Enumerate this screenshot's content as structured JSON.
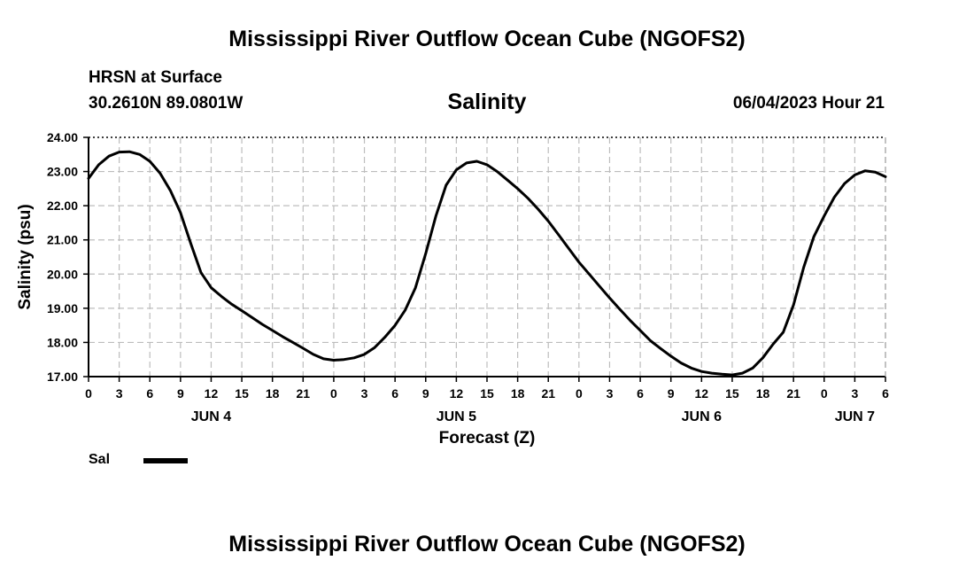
{
  "header": {
    "title": "Mississippi River Outflow Ocean Cube (NGOFS2)",
    "station": "HRSN at Surface",
    "coords": "30.2610N  89.0801W",
    "chart_title": "Salinity",
    "timestamp": "06/04/2023 Hour 21"
  },
  "footer": {
    "title": "Mississippi River Outflow Ocean Cube (NGOFS2)"
  },
  "legend": {
    "label": "Sal"
  },
  "chart_data": {
    "type": "line",
    "title": "Salinity",
    "xlabel": "Forecast (Z)",
    "ylabel": "Salinity (psu)",
    "xlim": [
      0,
      78
    ],
    "ylim": [
      17,
      24
    ],
    "yticks": [
      17,
      18,
      19,
      20,
      21,
      22,
      23,
      24
    ],
    "ytick_labels": [
      "17.00",
      "18.00",
      "19.00",
      "20.00",
      "21.00",
      "22.00",
      "23.00",
      "24.00"
    ],
    "xticks": [
      0,
      3,
      6,
      9,
      12,
      15,
      18,
      21,
      24,
      27,
      30,
      33,
      36,
      39,
      42,
      45,
      48,
      51,
      54,
      57,
      60,
      63,
      66,
      69,
      72,
      75,
      78
    ],
    "xtick_labels": [
      "0",
      "3",
      "6",
      "9",
      "12",
      "15",
      "18",
      "21",
      "0",
      "3",
      "6",
      "9",
      "12",
      "15",
      "18",
      "21",
      "0",
      "3",
      "6",
      "9",
      "12",
      "15",
      "18",
      "21",
      "0",
      "3",
      "6"
    ],
    "day_labels": [
      {
        "x": 12,
        "label": "JUN 4"
      },
      {
        "x": 36,
        "label": "JUN 5"
      },
      {
        "x": 60,
        "label": "JUN 6"
      },
      {
        "x": 75,
        "label": "JUN 7"
      }
    ],
    "grid": true,
    "legend": [
      "Sal"
    ],
    "series": [
      {
        "name": "Sal",
        "x": [
          0,
          1,
          2,
          3,
          4,
          5,
          6,
          7,
          8,
          9,
          10,
          11,
          12,
          13,
          14,
          15,
          16,
          17,
          18,
          19,
          20,
          21,
          22,
          23,
          24,
          25,
          26,
          27,
          28,
          29,
          30,
          31,
          32,
          33,
          34,
          35,
          36,
          37,
          38,
          39,
          40,
          41,
          42,
          43,
          44,
          45,
          46,
          47,
          48,
          49,
          50,
          51,
          52,
          53,
          54,
          55,
          56,
          57,
          58,
          59,
          60,
          61,
          62,
          63,
          64,
          65,
          66,
          67,
          68,
          69,
          70,
          71,
          72,
          73,
          74,
          75,
          76,
          77,
          78
        ],
        "values": [
          22.8,
          23.2,
          23.45,
          23.57,
          23.58,
          23.5,
          23.3,
          22.95,
          22.45,
          21.8,
          20.9,
          20.05,
          19.6,
          19.35,
          19.12,
          18.93,
          18.73,
          18.53,
          18.35,
          18.17,
          18.0,
          17.83,
          17.65,
          17.52,
          17.48,
          17.5,
          17.55,
          17.65,
          17.85,
          18.15,
          18.5,
          18.95,
          19.6,
          20.6,
          21.7,
          22.6,
          23.05,
          23.25,
          23.3,
          23.2,
          23.0,
          22.75,
          22.5,
          22.22,
          21.9,
          21.55,
          21.15,
          20.75,
          20.35,
          20.0,
          19.65,
          19.3,
          18.97,
          18.65,
          18.35,
          18.05,
          17.82,
          17.6,
          17.4,
          17.25,
          17.15,
          17.1,
          17.07,
          17.05,
          17.1,
          17.25,
          17.55,
          17.95,
          18.3,
          19.1,
          20.2,
          21.1,
          21.7,
          22.25,
          22.65,
          22.9,
          23.02,
          22.98,
          22.85
        ]
      }
    ]
  }
}
